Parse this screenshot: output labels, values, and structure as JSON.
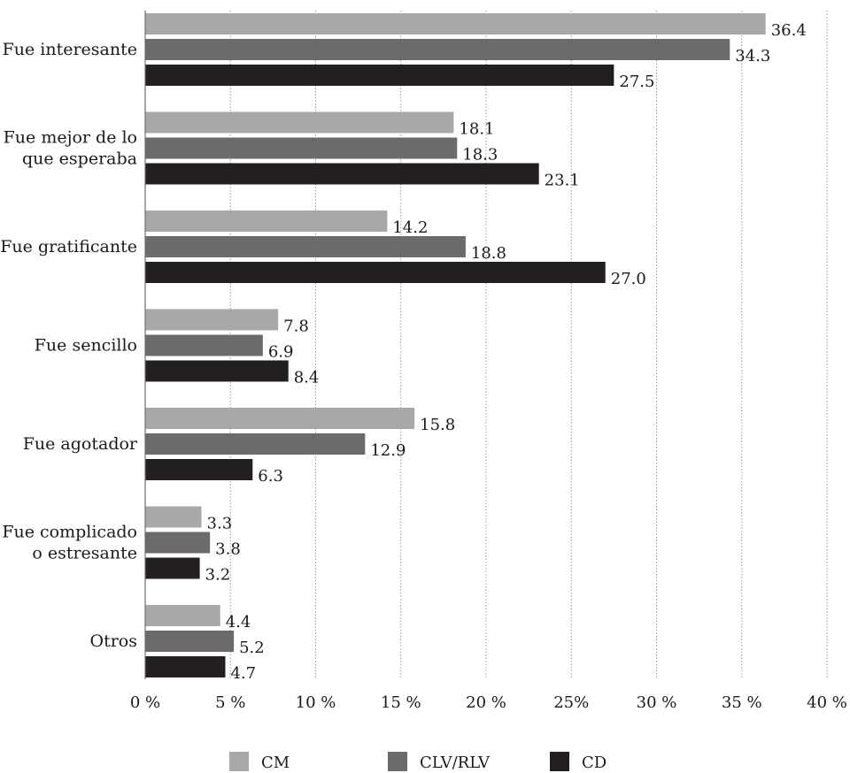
{
  "chart_data": {
    "type": "bar",
    "orientation": "horizontal",
    "categories": [
      [
        "Fue interesante"
      ],
      [
        "Fue mejor de lo",
        "que esperaba"
      ],
      [
        "Fue gratificante"
      ],
      [
        "Fue sencillo"
      ],
      [
        "Fue agotador"
      ],
      [
        "Fue complicado",
        "o estresante"
      ],
      [
        "Otros"
      ]
    ],
    "series": [
      {
        "name": "CM",
        "color": "#a8a8a8",
        "values": [
          36.4,
          18.1,
          14.2,
          7.8,
          15.8,
          3.3,
          4.4
        ],
        "labels": [
          "36.4",
          "18.1",
          "14.2",
          "7.8",
          "15.8",
          "3.3",
          "4.4"
        ]
      },
      {
        "name": "CLV/RLV",
        "color": "#6b6b6b",
        "values": [
          34.3,
          18.3,
          18.8,
          6.9,
          12.9,
          3.8,
          5.2
        ],
        "labels": [
          "34.3",
          "18.3",
          "18.8",
          "6.9",
          "12.9",
          "3.8",
          "5.2"
        ]
      },
      {
        "name": "CD",
        "color": "#231f20",
        "values": [
          27.5,
          23.1,
          27.0,
          8.4,
          6.3,
          3.2,
          4.7
        ],
        "labels": [
          "27.5",
          "23.1",
          "27.0",
          "8.4",
          "6.3",
          "3.2",
          "4.7"
        ]
      }
    ],
    "x_ticks": [
      0,
      5,
      10,
      15,
      20,
      25,
      30,
      35,
      40
    ],
    "x_tick_labels": [
      "0 %",
      "5 %",
      "10 %",
      "15 %",
      "20 %",
      "25%",
      "30 %",
      "35 %",
      "40 %"
    ],
    "xlim": [
      0,
      40
    ],
    "grid": "vertical, dotted",
    "legend_position": "bottom"
  }
}
